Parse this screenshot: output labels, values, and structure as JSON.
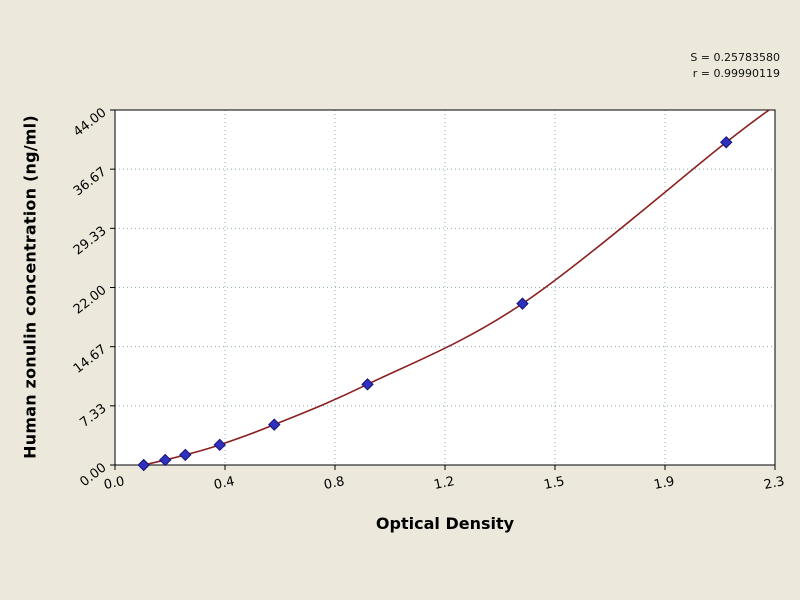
{
  "chart_data": {
    "type": "scatter",
    "title": "",
    "xlabel": "Optical Density",
    "ylabel": "Human zonulin concentration (ng/ml)",
    "xlim": [
      0,
      2.3
    ],
    "ylim": [
      0,
      44
    ],
    "x_tick_labels": [
      "0.0",
      "0.4",
      "0.8",
      "1.2",
      "1.5",
      "1.9",
      "2.3"
    ],
    "y_tick_labels": [
      "0.00",
      "7.33",
      "14.67",
      "22.00",
      "29.33",
      "36.67",
      "44.00"
    ],
    "grid": "dotted",
    "legend": "none",
    "points": {
      "x": [
        0.1,
        0.175,
        0.245,
        0.365,
        0.555,
        0.88,
        1.42,
        2.13
      ],
      "y": [
        0,
        0.625,
        1.25,
        2.5,
        5,
        10,
        20,
        40
      ]
    },
    "curve_extension_point": {
      "x": 2.3,
      "y": 44.5
    },
    "stats": {
      "s": "S = 0.25783580",
      "r": "r = 0.99990119"
    },
    "colors": {
      "background": "#ece9dc",
      "plot_bg": "#ffffff",
      "axis": "#000000",
      "grid": "#8fb0b5",
      "curve": "#8b2020",
      "point_fill": "#3030c0",
      "point_stroke": "#141470"
    }
  }
}
